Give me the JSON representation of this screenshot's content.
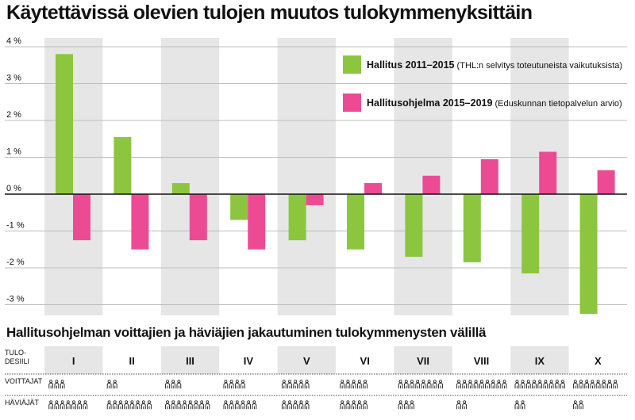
{
  "title": "Käytettävissä olevien tulojen muutos tulokymmenyksittäin",
  "subtitle": "Hallitusohjelman voittajien ja häviäjien jakautuminen tulokymmenysten välillä",
  "table": {
    "row_header_line1": "TULO-",
    "row_header_line2": "DESIILI",
    "winners_label": "VOITTAJAT",
    "losers_label": "HÄVIÄJÄT",
    "deciles": [
      "I",
      "II",
      "III",
      "IV",
      "V",
      "VI",
      "VII",
      "VIII",
      "IX",
      "X"
    ],
    "winners_counts": [
      3,
      2,
      3,
      4,
      5,
      5,
      8,
      9,
      9,
      8
    ],
    "losers_counts": [
      7,
      8,
      8,
      6,
      5,
      5,
      3,
      2,
      2,
      2
    ],
    "person_icon": "person-icon"
  },
  "colors": {
    "green": "#8cc63f",
    "pink": "#ec4b94",
    "band": "#e6e6e6"
  },
  "chart_data": {
    "type": "bar",
    "title": "Käytettävissä olevien tulojen muutos tulokymmenyksittäin",
    "categories": [
      "I",
      "II",
      "III",
      "IV",
      "V",
      "VI",
      "VII",
      "VIII",
      "IX",
      "X"
    ],
    "series": [
      {
        "name": "Hallitus 2011–2015",
        "note": "(THL:n selvitys toteutuneista vaikutuksista)",
        "color": "#8cc63f",
        "values": [
          3.8,
          1.55,
          0.3,
          -0.7,
          -1.25,
          -1.5,
          -1.7,
          -1.85,
          -2.15,
          -3.25
        ]
      },
      {
        "name": "Hallitusohjelma 2015–2019",
        "note": "(Eduskunnan tietopalvelun arvio)",
        "color": "#ec4b94",
        "values": [
          -1.25,
          -1.5,
          -1.25,
          -1.5,
          -0.3,
          0.3,
          0.5,
          0.95,
          1.15,
          0.65
        ]
      }
    ],
    "ylim": [
      -3.3,
      4.2
    ],
    "yticks": [
      4,
      3,
      2,
      1,
      0,
      -1,
      -2,
      -3
    ],
    "ytick_labels": [
      "4 %",
      "3 %",
      "2 %",
      "1 %",
      "0 %",
      "-1 %",
      "-2 %",
      "-3 %"
    ],
    "grid": true,
    "legend_position": "top-right"
  }
}
